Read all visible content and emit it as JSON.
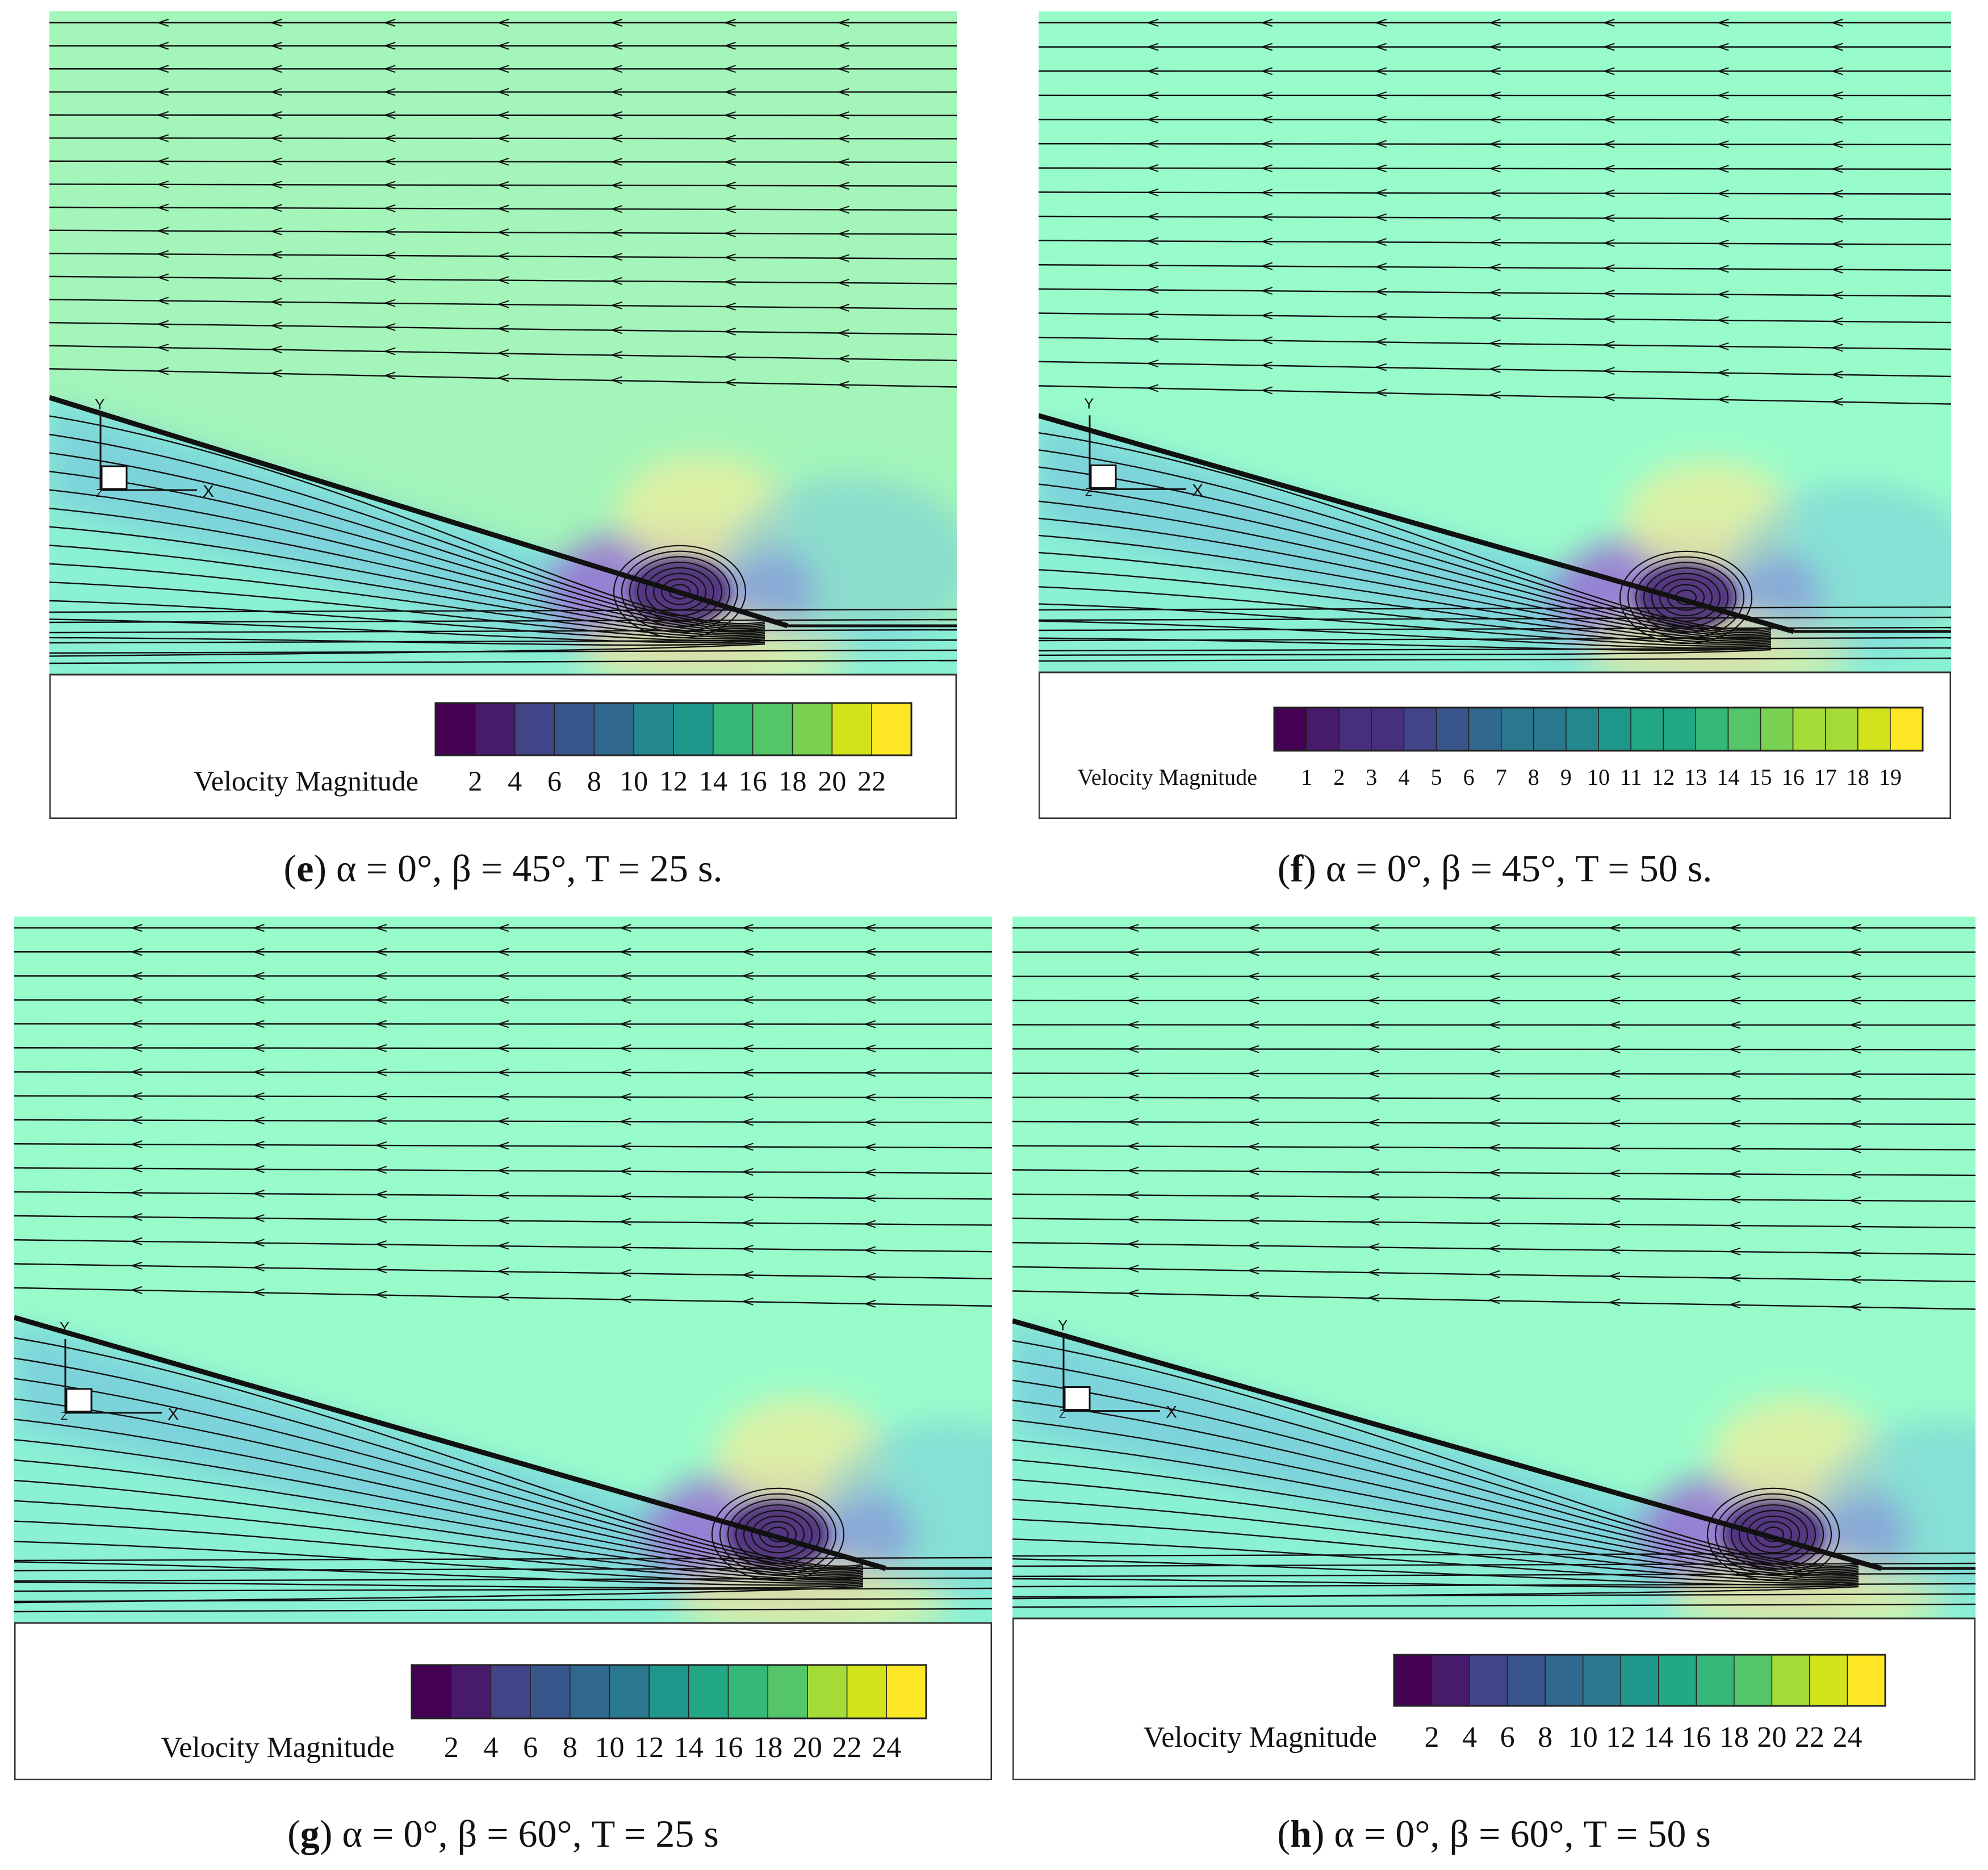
{
  "colormap": [
    "#440154",
    "#481a6c",
    "#472f7d",
    "#414487",
    "#39568c",
    "#31688e",
    "#2a788e",
    "#23888e",
    "#1f988b",
    "#22a884",
    "#35b779",
    "#54c568",
    "#7ad151",
    "#a5db36",
    "#d2e21b",
    "#fde725"
  ],
  "flow_colors": {
    "freestream_warm": "#a3f5b9",
    "freestream_cool": "#98fcca",
    "near_bottom": "#8af1d4",
    "wake": "#78c8dc",
    "recirculation": "#9a72d2",
    "core": "#4a2d78",
    "hotspot": "#e8f0a0"
  },
  "panels": [
    {
      "letter": "e",
      "caption": "α = 0°, β = 45°, T = 25 s.",
      "legend_title": "Velocity Magnitude",
      "ticks": [
        "2",
        "4",
        "6",
        "8",
        "10",
        "12",
        "14",
        "16",
        "18",
        "20",
        "22"
      ],
      "axes": {
        "x": "X",
        "y": "Y",
        "z": "Z"
      }
    },
    {
      "letter": "f",
      "caption": "α = 0°, β = 45°, T = 50 s.",
      "legend_title": "Velocity Magnitude",
      "ticks": [
        "1",
        "2",
        "3",
        "4",
        "5",
        "6",
        "7",
        "8",
        "9",
        "10",
        "11",
        "12",
        "13",
        "14",
        "15",
        "16",
        "17",
        "18",
        "19"
      ],
      "axes": {
        "x": "X",
        "y": "Y",
        "z": "Z"
      }
    },
    {
      "letter": "g",
      "caption": "α = 0°, β = 60°, T = 25 s",
      "legend_title": "Velocity Magnitude",
      "ticks": [
        "2",
        "4",
        "6",
        "8",
        "10",
        "12",
        "14",
        "16",
        "18",
        "20",
        "22",
        "24"
      ],
      "axes": {
        "x": "X",
        "y": "Y",
        "z": "Z"
      }
    },
    {
      "letter": "h",
      "caption": "α = 0°, β = 60°, T = 50 s",
      "legend_title": "Velocity Magnitude",
      "ticks": [
        "2",
        "4",
        "6",
        "8",
        "10",
        "12",
        "14",
        "16",
        "18",
        "20",
        "22",
        "24"
      ],
      "axes": {
        "x": "X",
        "y": "Y",
        "z": "Z"
      }
    }
  ]
}
